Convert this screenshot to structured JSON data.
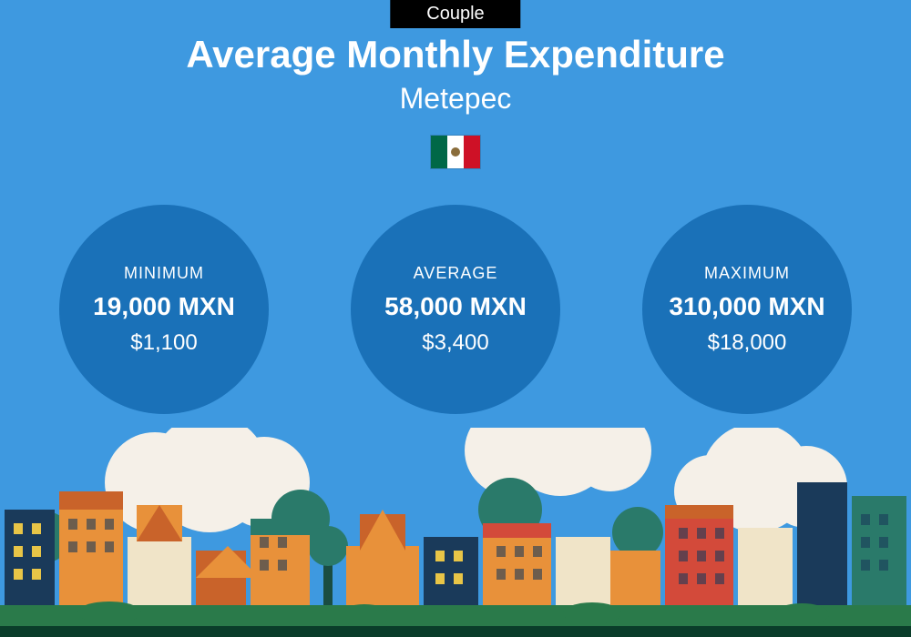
{
  "colors": {
    "background": "#3e99e0",
    "badge_bg": "#000000",
    "circle_bg": "#1a71b8",
    "text": "#ffffff",
    "city": {
      "cloud": "#f5f0e8",
      "ground": "#2a7a4a",
      "dark_ground": "#0a3d2a",
      "orange": "#e8913a",
      "dark_orange": "#c9632a",
      "teal": "#2a7a6a",
      "dark_teal": "#1a4d42",
      "cream": "#f0e4c8",
      "navy": "#1a3a5a",
      "red": "#d34a3a",
      "yellow": "#e8c547"
    }
  },
  "badge": "Couple",
  "title": "Average Monthly Expenditure",
  "subtitle": "Metepec",
  "country": "Mexico",
  "stats": [
    {
      "label": "MINIMUM",
      "local": "19,000 MXN",
      "usd": "$1,100"
    },
    {
      "label": "AVERAGE",
      "local": "58,000 MXN",
      "usd": "$3,400"
    },
    {
      "label": "MAXIMUM",
      "local": "310,000 MXN",
      "usd": "$18,000"
    }
  ]
}
